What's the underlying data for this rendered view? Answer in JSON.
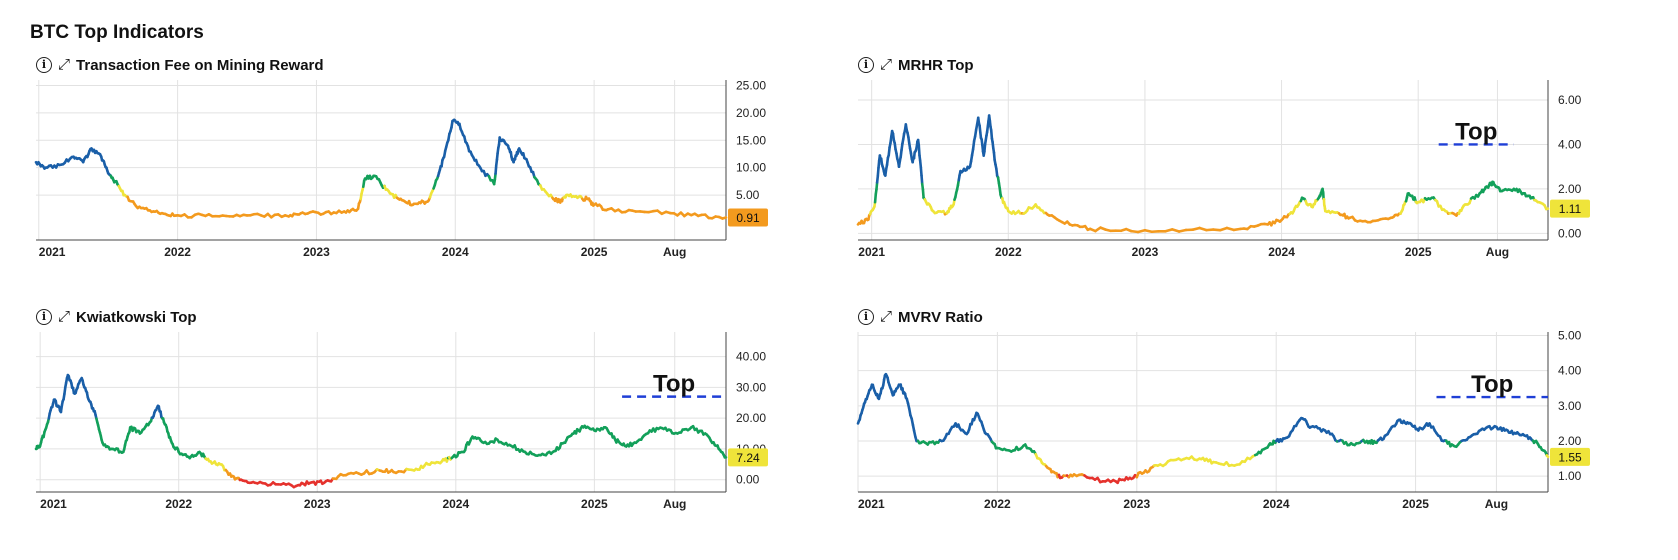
{
  "page": {
    "title": "BTC Top Indicators"
  },
  "icons": {
    "info": "info-icon",
    "expand": "expand-icon",
    "info_glyph": "i",
    "expand_glyph": "⤢"
  },
  "colors": {
    "blue": "#1a5fa8",
    "green": "#13a05a",
    "yellow": "#efe43a",
    "orange": "#f39a1e",
    "red": "#e5322d",
    "top_line": "#1f3fd6",
    "grid": "#e2e2e2"
  },
  "chart_data": [
    {
      "id": "tx-fee",
      "type": "line",
      "title": "Transaction Fee on Mining Reward",
      "x_ticks": [
        {
          "x": 2021.0,
          "label": "2021"
        },
        {
          "x": 2022.0,
          "label": "2022"
        },
        {
          "x": 2023.0,
          "label": "2023"
        },
        {
          "x": 2024.0,
          "label": "2024"
        },
        {
          "x": 2025.0,
          "label": "2025"
        },
        {
          "x": 2025.58,
          "label": "Aug"
        }
      ],
      "xlim": [
        2020.98,
        2025.95
      ],
      "ylim": [
        -3.2,
        26
      ],
      "y_ticks": [
        {
          "v": 25,
          "label": "25.00"
        },
        {
          "v": 20,
          "label": "20.00"
        },
        {
          "v": 15,
          "label": "15.00"
        },
        {
          "v": 10,
          "label": "10.00"
        },
        {
          "v": 5,
          "label": "5.00"
        }
      ],
      "thresholds": [
        4.5,
        6.5,
        8.5
      ],
      "current": {
        "value": 0.91,
        "label": "0.91",
        "color": "#f39a1e"
      },
      "points": [
        [
          2020.98,
          11
        ],
        [
          2021.05,
          10
        ],
        [
          2021.15,
          10.5
        ],
        [
          2021.25,
          12
        ],
        [
          2021.32,
          11
        ],
        [
          2021.38,
          13.5
        ],
        [
          2021.45,
          12
        ],
        [
          2021.5,
          9
        ],
        [
          2021.55,
          7.5
        ],
        [
          2021.62,
          5
        ],
        [
          2021.7,
          3
        ],
        [
          2021.8,
          2.2
        ],
        [
          2021.9,
          1.6
        ],
        [
          2022.0,
          1.3
        ],
        [
          2022.2,
          1.2
        ],
        [
          2022.4,
          1.1
        ],
        [
          2022.6,
          1.3
        ],
        [
          2022.8,
          1.1
        ],
        [
          2022.9,
          1.8
        ],
        [
          2023.05,
          1.6
        ],
        [
          2023.2,
          2.0
        ],
        [
          2023.3,
          2.5
        ],
        [
          2023.35,
          8
        ],
        [
          2023.42,
          8.5
        ],
        [
          2023.5,
          6
        ],
        [
          2023.58,
          4.5
        ],
        [
          2023.65,
          3.6
        ],
        [
          2023.72,
          3.4
        ],
        [
          2023.8,
          3.8
        ],
        [
          2023.87,
          8
        ],
        [
          2023.92,
          12
        ],
        [
          2023.98,
          18.5
        ],
        [
          2024.03,
          18
        ],
        [
          2024.1,
          13
        ],
        [
          2024.18,
          10
        ],
        [
          2024.28,
          7
        ],
        [
          2024.32,
          15.5
        ],
        [
          2024.38,
          14
        ],
        [
          2024.42,
          11
        ],
        [
          2024.46,
          13.5
        ],
        [
          2024.52,
          11
        ],
        [
          2024.6,
          7
        ],
        [
          2024.7,
          4.5
        ],
        [
          2024.75,
          3.8
        ],
        [
          2024.8,
          5
        ],
        [
          2024.88,
          4.5
        ],
        [
          2024.95,
          4.3
        ],
        [
          2025.0,
          3.2
        ],
        [
          2025.1,
          2.4
        ],
        [
          2025.3,
          2.0
        ],
        [
          2025.55,
          1.7
        ],
        [
          2025.75,
          1.2
        ],
        [
          2025.95,
          0.91
        ]
      ]
    },
    {
      "id": "mrhr",
      "type": "line",
      "title": "MRHR Top",
      "x_ticks": [
        {
          "x": 2021.0,
          "label": "2021"
        },
        {
          "x": 2022.0,
          "label": "2022"
        },
        {
          "x": 2023.0,
          "label": "2023"
        },
        {
          "x": 2024.0,
          "label": "2024"
        },
        {
          "x": 2025.0,
          "label": "2025"
        },
        {
          "x": 2025.58,
          "label": "Aug"
        }
      ],
      "xlim": [
        2020.9,
        2025.95
      ],
      "ylim": [
        -0.3,
        6.9
      ],
      "y_ticks": [
        {
          "v": 6,
          "label": "6.00"
        },
        {
          "v": 4,
          "label": "4.00"
        },
        {
          "v": 2,
          "label": "2.00"
        },
        {
          "v": 0,
          "label": "0.00"
        }
      ],
      "thresholds": [
        0.9,
        1.5,
        2.4
      ],
      "top_line": {
        "value": 4.0,
        "x_start": 2025.15,
        "x_end": 2025.7,
        "label": "Top"
      },
      "current": {
        "value": 1.11,
        "label": "1.11",
        "color": "#efe43a"
      },
      "points": [
        [
          2020.9,
          0.4
        ],
        [
          2020.97,
          0.6
        ],
        [
          2021.02,
          1.2
        ],
        [
          2021.06,
          3.5
        ],
        [
          2021.1,
          2.6
        ],
        [
          2021.15,
          4.6
        ],
        [
          2021.2,
          3.0
        ],
        [
          2021.25,
          4.9
        ],
        [
          2021.3,
          3.2
        ],
        [
          2021.34,
          4.2
        ],
        [
          2021.38,
          1.6
        ],
        [
          2021.45,
          1.0
        ],
        [
          2021.55,
          0.9
        ],
        [
          2021.6,
          1.3
        ],
        [
          2021.65,
          2.8
        ],
        [
          2021.72,
          3.0
        ],
        [
          2021.78,
          5.2
        ],
        [
          2021.82,
          3.5
        ],
        [
          2021.86,
          5.3
        ],
        [
          2021.9,
          3.3
        ],
        [
          2021.95,
          1.6
        ],
        [
          2022.0,
          1.0
        ],
        [
          2022.1,
          0.9
        ],
        [
          2022.2,
          1.3
        ],
        [
          2022.3,
          0.8
        ],
        [
          2022.45,
          0.4
        ],
        [
          2022.6,
          0.2
        ],
        [
          2022.9,
          0.1
        ],
        [
          2023.3,
          0.15
        ],
        [
          2023.7,
          0.2
        ],
        [
          2023.9,
          0.4
        ],
        [
          2024.0,
          0.6
        ],
        [
          2024.08,
          0.9
        ],
        [
          2024.15,
          1.6
        ],
        [
          2024.22,
          1.2
        ],
        [
          2024.28,
          1.7
        ],
        [
          2024.3,
          2.0
        ],
        [
          2024.32,
          1.0
        ],
        [
          2024.42,
          0.9
        ],
        [
          2024.5,
          0.7
        ],
        [
          2024.65,
          0.5
        ],
        [
          2024.8,
          0.7
        ],
        [
          2024.88,
          1.0
        ],
        [
          2024.93,
          1.8
        ],
        [
          2025.0,
          1.4
        ],
        [
          2025.1,
          1.6
        ],
        [
          2025.2,
          1.0
        ],
        [
          2025.28,
          0.8
        ],
        [
          2025.35,
          1.3
        ],
        [
          2025.45,
          1.8
        ],
        [
          2025.5,
          2.1
        ],
        [
          2025.55,
          2.3
        ],
        [
          2025.6,
          1.9
        ],
        [
          2025.7,
          2.0
        ],
        [
          2025.78,
          1.8
        ],
        [
          2025.85,
          1.5
        ],
        [
          2025.95,
          1.11
        ]
      ]
    },
    {
      "id": "kwiatkowski",
      "type": "line",
      "title": "Kwiatkowski Top",
      "x_ticks": [
        {
          "x": 2021.0,
          "label": "2021"
        },
        {
          "x": 2022.0,
          "label": "2022"
        },
        {
          "x": 2023.0,
          "label": "2023"
        },
        {
          "x": 2024.0,
          "label": "2024"
        },
        {
          "x": 2025.0,
          "label": "2025"
        },
        {
          "x": 2025.58,
          "label": "Aug"
        }
      ],
      "xlim": [
        2020.97,
        2025.95
      ],
      "ylim": [
        -4,
        48
      ],
      "y_ticks": [
        {
          "v": 40,
          "label": "40.00"
        },
        {
          "v": 30,
          "label": "30.00"
        },
        {
          "v": 20,
          "label": "20.00"
        },
        {
          "v": 10,
          "label": "10.00"
        },
        {
          "v": 0,
          "label": "0.00"
        }
      ],
      "thresholds": [
        0,
        3,
        7,
        20
      ],
      "top_line": {
        "value": 27,
        "x_start": 2025.2,
        "x_end": 2025.95,
        "label": "Top"
      },
      "current": {
        "value": 7.24,
        "label": "7.24",
        "color": "#efe43a"
      },
      "points": [
        [
          2020.97,
          10
        ],
        [
          2021.0,
          11
        ],
        [
          2021.05,
          18
        ],
        [
          2021.1,
          26
        ],
        [
          2021.15,
          22
        ],
        [
          2021.2,
          34
        ],
        [
          2021.25,
          28
        ],
        [
          2021.3,
          33
        ],
        [
          2021.35,
          26
        ],
        [
          2021.4,
          21
        ],
        [
          2021.45,
          12
        ],
        [
          2021.52,
          10
        ],
        [
          2021.6,
          9
        ],
        [
          2021.65,
          17
        ],
        [
          2021.72,
          15
        ],
        [
          2021.8,
          19
        ],
        [
          2021.85,
          24
        ],
        [
          2021.9,
          18
        ],
        [
          2021.95,
          12
        ],
        [
          2022.0,
          9
        ],
        [
          2022.08,
          7
        ],
        [
          2022.15,
          9
        ],
        [
          2022.22,
          6
        ],
        [
          2022.3,
          5
        ],
        [
          2022.38,
          1
        ],
        [
          2022.45,
          0
        ],
        [
          2022.55,
          -1
        ],
        [
          2022.7,
          -1.5
        ],
        [
          2022.85,
          -2
        ],
        [
          2022.95,
          -1
        ],
        [
          2023.05,
          -1
        ],
        [
          2023.15,
          1
        ],
        [
          2023.3,
          2
        ],
        [
          2023.45,
          3
        ],
        [
          2023.55,
          2.5
        ],
        [
          2023.7,
          3
        ],
        [
          2023.8,
          5
        ],
        [
          2023.9,
          6
        ],
        [
          2023.97,
          7
        ],
        [
          2024.05,
          9
        ],
        [
          2024.12,
          14
        ],
        [
          2024.2,
          12
        ],
        [
          2024.3,
          13
        ],
        [
          2024.4,
          11
        ],
        [
          2024.5,
          9
        ],
        [
          2024.6,
          8
        ],
        [
          2024.7,
          9
        ],
        [
          2024.78,
          12
        ],
        [
          2024.85,
          15
        ],
        [
          2024.92,
          17
        ],
        [
          2025.0,
          16
        ],
        [
          2025.08,
          17
        ],
        [
          2025.15,
          13
        ],
        [
          2025.22,
          11
        ],
        [
          2025.3,
          12
        ],
        [
          2025.4,
          16
        ],
        [
          2025.5,
          16.5
        ],
        [
          2025.6,
          15
        ],
        [
          2025.7,
          17
        ],
        [
          2025.8,
          15
        ],
        [
          2025.88,
          11
        ],
        [
          2025.95,
          7.24
        ]
      ]
    },
    {
      "id": "mvrv",
      "type": "line",
      "title": "MVRV Ratio",
      "x_ticks": [
        {
          "x": 2021.0,
          "label": "2021"
        },
        {
          "x": 2022.0,
          "label": "2022"
        },
        {
          "x": 2023.0,
          "label": "2023"
        },
        {
          "x": 2024.0,
          "label": "2024"
        },
        {
          "x": 2025.0,
          "label": "2025"
        },
        {
          "x": 2025.58,
          "label": "Aug"
        }
      ],
      "xlim": [
        2021.0,
        2025.95
      ],
      "ylim": [
        0.55,
        5.1
      ],
      "y_ticks": [
        {
          "v": 5,
          "label": "5.00"
        },
        {
          "v": 4,
          "label": "4.00"
        },
        {
          "v": 3,
          "label": "3.00"
        },
        {
          "v": 2,
          "label": "2.00"
        },
        {
          "v": 1,
          "label": "1.00"
        }
      ],
      "thresholds": [
        1.0,
        1.3,
        1.6,
        2.0
      ],
      "top_line": {
        "value": 3.25,
        "x_start": 2025.15,
        "x_end": 2025.95,
        "label": "Top"
      },
      "current": {
        "value": 1.55,
        "label": "1.55",
        "color": "#efe43a"
      },
      "points": [
        [
          2021.0,
          2.5
        ],
        [
          2021.05,
          3.1
        ],
        [
          2021.1,
          3.6
        ],
        [
          2021.15,
          3.2
        ],
        [
          2021.2,
          3.9
        ],
        [
          2021.25,
          3.3
        ],
        [
          2021.3,
          3.6
        ],
        [
          2021.35,
          3.2
        ],
        [
          2021.42,
          2.0
        ],
        [
          2021.5,
          1.9
        ],
        [
          2021.6,
          2.0
        ],
        [
          2021.7,
          2.5
        ],
        [
          2021.78,
          2.2
        ],
        [
          2021.85,
          2.8
        ],
        [
          2021.92,
          2.2
        ],
        [
          2022.0,
          1.8
        ],
        [
          2022.1,
          1.7
        ],
        [
          2022.2,
          1.9
        ],
        [
          2022.3,
          1.5
        ],
        [
          2022.38,
          1.2
        ],
        [
          2022.45,
          0.95
        ],
        [
          2022.55,
          1.05
        ],
        [
          2022.7,
          0.9
        ],
        [
          2022.85,
          0.85
        ],
        [
          2022.95,
          0.95
        ],
        [
          2023.05,
          1.1
        ],
        [
          2023.15,
          1.3
        ],
        [
          2023.3,
          1.5
        ],
        [
          2023.45,
          1.5
        ],
        [
          2023.55,
          1.4
        ],
        [
          2023.7,
          1.3
        ],
        [
          2023.85,
          1.6
        ],
        [
          2023.95,
          1.9
        ],
        [
          2024.0,
          2.0
        ],
        [
          2024.08,
          2.1
        ],
        [
          2024.18,
          2.65
        ],
        [
          2024.25,
          2.4
        ],
        [
          2024.35,
          2.3
        ],
        [
          2024.45,
          2.0
        ],
        [
          2024.55,
          1.9
        ],
        [
          2024.65,
          2.0
        ],
        [
          2024.72,
          1.95
        ],
        [
          2024.8,
          2.2
        ],
        [
          2024.88,
          2.6
        ],
        [
          2024.95,
          2.5
        ],
        [
          2025.02,
          2.3
        ],
        [
          2025.1,
          2.5
        ],
        [
          2025.2,
          2.0
        ],
        [
          2025.28,
          1.85
        ],
        [
          2025.38,
          2.1
        ],
        [
          2025.48,
          2.35
        ],
        [
          2025.58,
          2.4
        ],
        [
          2025.66,
          2.3
        ],
        [
          2025.74,
          2.2
        ],
        [
          2025.82,
          2.1
        ],
        [
          2025.88,
          1.9
        ],
        [
          2025.95,
          1.55
        ]
      ]
    }
  ]
}
